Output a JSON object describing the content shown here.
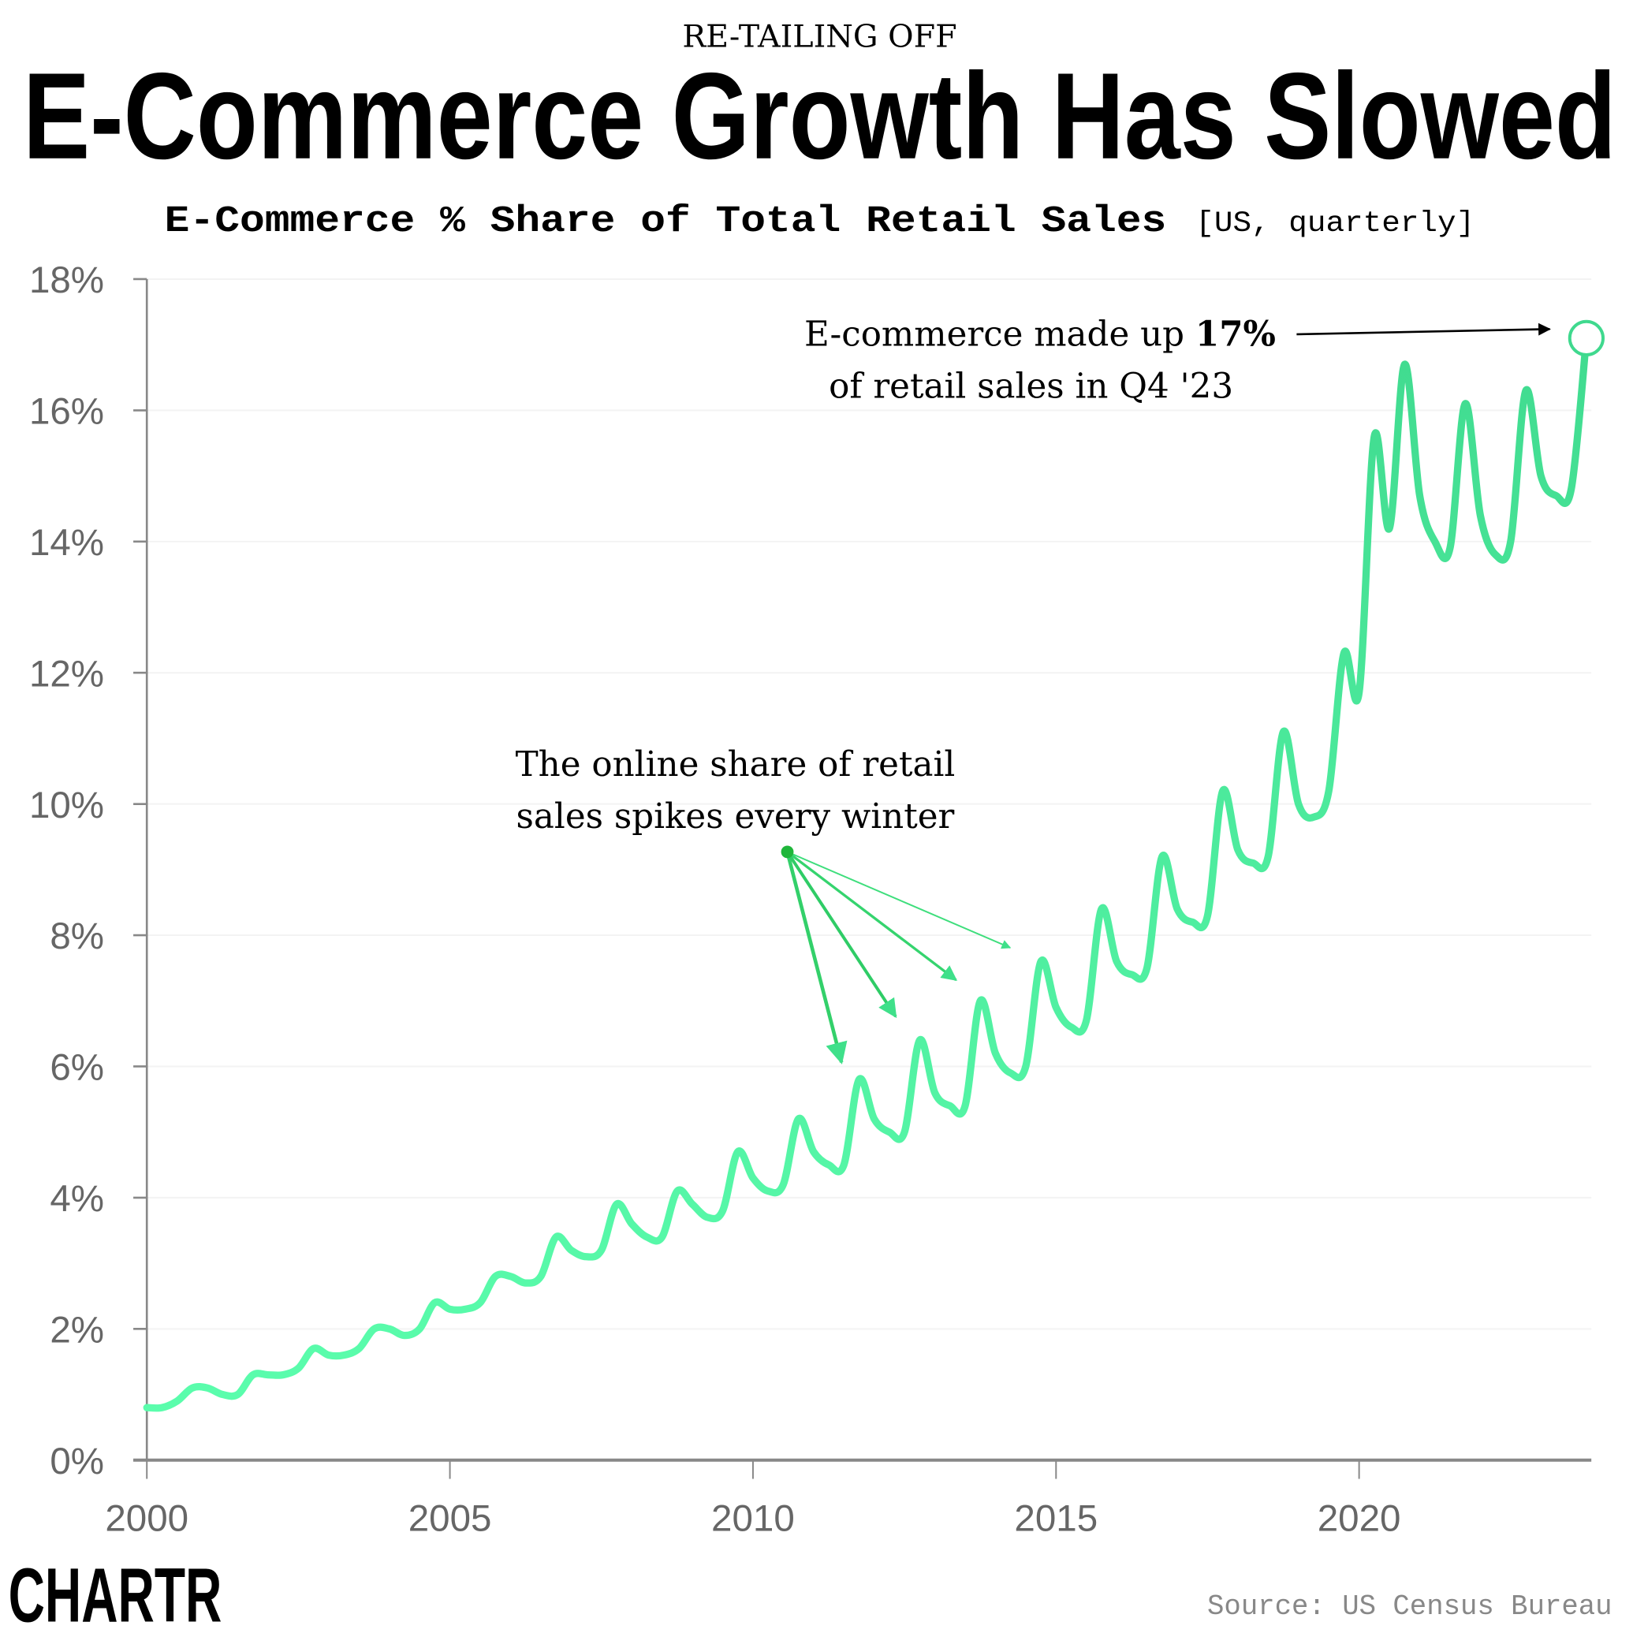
{
  "kicker": "RE-TAILING OFF",
  "title": "E-Commerce Growth Has Slowed",
  "subtitle": {
    "main": "E-Commerce % Share of Total Retail Sales",
    "qualifier": "[US, quarterly]"
  },
  "source": "Source: US Census Bureau",
  "logo": "CHARTR",
  "colors": {
    "line_low": "#5cffae",
    "line_high": "#3fd98e",
    "arrow_dark": "#1fb63a",
    "axis": "#888888",
    "tick_text": "#666666"
  },
  "chart_data": {
    "type": "line",
    "title": "E-Commerce % Share of Total Retail Sales",
    "xlabel": "",
    "ylabel": "",
    "xlim": [
      2000,
      2023.75
    ],
    "ylim": [
      0,
      18
    ],
    "x_ticks": [
      "2000",
      "2005",
      "2010",
      "2015",
      "2020"
    ],
    "y_ticks": [
      "0%",
      "2%",
      "4%",
      "6%",
      "8%",
      "10%",
      "12%",
      "14%",
      "16%",
      "18%"
    ],
    "grid": "horizontal, faint",
    "start_quarter": "2000 Q1",
    "x": [
      2000,
      2000.25,
      2000.5,
      2000.75,
      2001,
      2001.25,
      2001.5,
      2001.75,
      2002,
      2002.25,
      2002.5,
      2002.75,
      2003,
      2003.25,
      2003.5,
      2003.75,
      2004,
      2004.25,
      2004.5,
      2004.75,
      2005,
      2005.25,
      2005.5,
      2005.75,
      2006,
      2006.25,
      2006.5,
      2006.75,
      2007,
      2007.25,
      2007.5,
      2007.75,
      2008,
      2008.25,
      2008.5,
      2008.75,
      2009,
      2009.25,
      2009.5,
      2009.75,
      2010,
      2010.25,
      2010.5,
      2010.75,
      2011,
      2011.25,
      2011.5,
      2011.75,
      2012,
      2012.25,
      2012.5,
      2012.75,
      2013,
      2013.25,
      2013.5,
      2013.75,
      2014,
      2014.25,
      2014.5,
      2014.75,
      2015,
      2015.25,
      2015.5,
      2015.75,
      2016,
      2016.25,
      2016.5,
      2016.75,
      2017,
      2017.25,
      2017.5,
      2017.75,
      2018,
      2018.25,
      2018.5,
      2018.75,
      2019,
      2019.25,
      2019.5,
      2019.75,
      2020,
      2020.25,
      2020.5,
      2020.75,
      2021,
      2021.25,
      2021.5,
      2021.75,
      2022,
      2022.25,
      2022.5,
      2022.75,
      2023,
      2023.25,
      2023.5,
      2023.75
    ],
    "values": [
      0.8,
      0.8,
      0.9,
      1.1,
      1.1,
      1.0,
      1.0,
      1.3,
      1.3,
      1.3,
      1.4,
      1.7,
      1.6,
      1.6,
      1.7,
      2.0,
      2.0,
      1.9,
      2.0,
      2.4,
      2.3,
      2.3,
      2.4,
      2.8,
      2.8,
      2.7,
      2.8,
      3.4,
      3.2,
      3.1,
      3.2,
      3.9,
      3.6,
      3.4,
      3.4,
      4.1,
      3.9,
      3.7,
      3.8,
      4.7,
      4.3,
      4.1,
      4.2,
      5.2,
      4.7,
      4.5,
      4.5,
      5.8,
      5.2,
      5.0,
      5.0,
      6.4,
      5.6,
      5.4,
      5.4,
      7.0,
      6.2,
      5.9,
      6.0,
      7.6,
      6.9,
      6.6,
      6.7,
      8.4,
      7.6,
      7.4,
      7.5,
      9.2,
      8.4,
      8.2,
      8.3,
      10.2,
      9.3,
      9.1,
      9.2,
      11.1,
      10.0,
      9.8,
      10.2,
      12.3,
      11.7,
      15.6,
      14.2,
      16.7,
      14.7,
      14.0,
      13.9,
      16.1,
      14.4,
      13.8,
      14.0,
      16.3,
      15.0,
      14.7,
      14.8,
      17.1
    ],
    "annotations": [
      {
        "text_lines": [
          "E-commerce made up ",
          "17%",
          "of retail sales in Q4 '23"
        ],
        "points_to": "2023 Q4"
      },
      {
        "text_lines": [
          "The online share of retail",
          "sales spikes every winter"
        ],
        "points_to": [
          "2011 Q4",
          "2012 Q4",
          "2013 Q4",
          "2014 Q4"
        ]
      }
    ]
  }
}
